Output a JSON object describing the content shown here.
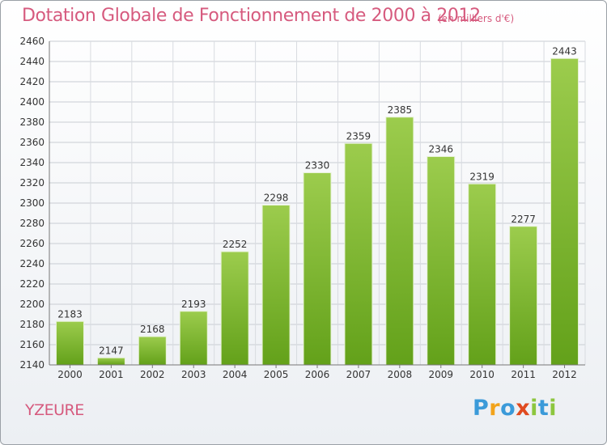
{
  "chart_data": {
    "type": "bar",
    "title": "Dotation Globale de Fonctionnement de 2000 à 2012",
    "subtitle": "(en milliers d'€)",
    "categories": [
      "2000",
      "2001",
      "2002",
      "2003",
      "2004",
      "2005",
      "2006",
      "2007",
      "2008",
      "2009",
      "2010",
      "2011",
      "2012"
    ],
    "values": [
      2183,
      2147,
      2168,
      2193,
      2252,
      2298,
      2330,
      2359,
      2385,
      2346,
      2319,
      2277,
      2443
    ],
    "ylim": [
      2140,
      2460
    ],
    "yticks": [
      2140,
      2160,
      2180,
      2200,
      2220,
      2240,
      2260,
      2280,
      2300,
      2320,
      2340,
      2360,
      2380,
      2400,
      2420,
      2440,
      2460
    ],
    "grid": true,
    "data_labels": true,
    "colors": {
      "bar_light": "#9ccc4d",
      "bar_dark": "#63a11a",
      "title": "#d65a7e"
    }
  },
  "commune": "YZEURE",
  "logo": {
    "text": "Proxiti",
    "letters": [
      {
        "ch": "P",
        "color": "#3b9ad9"
      },
      {
        "ch": "r",
        "color": "#f2a31b"
      },
      {
        "ch": "o",
        "color": "#3b9ad9"
      },
      {
        "ch": "x",
        "color": "#e04a1f"
      },
      {
        "ch": "i",
        "color": "#8cc63e"
      },
      {
        "ch": "t",
        "color": "#3b9ad9"
      },
      {
        "ch": "i",
        "color": "#8cc63e"
      }
    ]
  }
}
